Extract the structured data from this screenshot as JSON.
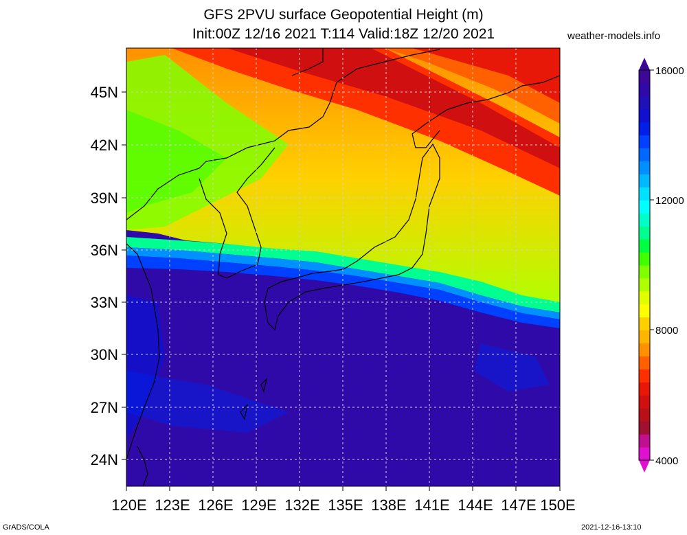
{
  "header": {
    "title_line1": "GFS 2PVU surface Geopotential Height (m)",
    "title_line2": "Init:00Z 12/16 2021 T:114 Valid:18Z 12/20 2021",
    "site": "weather-models.info"
  },
  "map": {
    "lat_labels": [
      "45N",
      "42N",
      "39N",
      "36N",
      "33N",
      "30N",
      "27N",
      "24N"
    ],
    "lon_labels": [
      "120E",
      "123E",
      "126E",
      "129E",
      "132E",
      "135E",
      "138E",
      "141E",
      "144E",
      "147E",
      "150E"
    ]
  },
  "colorbar": {
    "labels": [
      "16000",
      "12000",
      "8000",
      "4000"
    ],
    "colors": [
      "#e010d0",
      "#c01090",
      "#a01030",
      "#b81018",
      "#d01010",
      "#e81808",
      "#ff3000",
      "#ff6000",
      "#ff9000",
      "#ffb400",
      "#ffd000",
      "#ffff00",
      "#e0ff00",
      "#b0ff00",
      "#80ff00",
      "#40ff00",
      "#00ff40",
      "#00ff90",
      "#00ffc8",
      "#00ffff",
      "#00e0ff",
      "#00b8ff",
      "#0090ff",
      "#0068ff",
      "#0040ff",
      "#0020e8",
      "#1010d0",
      "#2010b8",
      "#300aa8",
      "#3c0898"
    ]
  },
  "footer": {
    "left": "GrADS/COLA",
    "right": "2021-12-16-13:10"
  }
}
